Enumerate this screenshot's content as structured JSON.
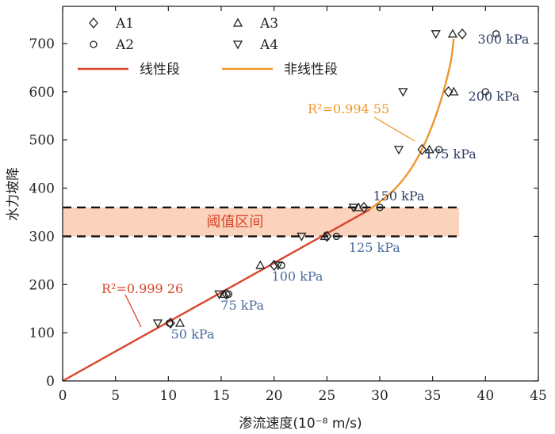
{
  "chart_data": {
    "type": "scatter",
    "xlabel": "渗流速度(10⁻⁸ m/s)",
    "ylabel": "水力坡降",
    "xlim": [
      0,
      45
    ],
    "ylim": [
      0,
      750
    ],
    "xticks": [
      "0",
      "5",
      "10",
      "15",
      "20",
      "25",
      "30",
      "35",
      "40",
      "45"
    ],
    "yticks": [
      "0",
      "100",
      "200",
      "300",
      "400",
      "500",
      "600",
      "700"
    ],
    "legend": {
      "placement": "top-left",
      "items": [
        {
          "label": "A1",
          "marker": "diamond"
        },
        {
          "label": "A2",
          "marker": "circle"
        },
        {
          "label": "A3",
          "marker": "triangle-up"
        },
        {
          "label": "A4",
          "marker": "triangle-down"
        },
        {
          "label": "线性段",
          "line_color": "#d9452b"
        },
        {
          "label": "非线性段",
          "line_color": "#f0962c"
        }
      ]
    },
    "series": [
      {
        "name": "A1",
        "marker": "diamond",
        "points": [
          [
            10.2,
            120
          ],
          [
            15.5,
            180
          ],
          [
            20.0,
            240
          ],
          [
            25.0,
            300
          ],
          [
            28.5,
            360
          ],
          [
            34.0,
            480
          ],
          [
            36.5,
            600
          ],
          [
            37.8,
            720
          ]
        ]
      },
      {
        "name": "A2",
        "marker": "circle",
        "points": [
          [
            10.1,
            120
          ],
          [
            15.7,
            180
          ],
          [
            20.7,
            240
          ],
          [
            25.9,
            300
          ],
          [
            30.0,
            360
          ],
          [
            35.6,
            480
          ],
          [
            40.0,
            600
          ],
          [
            41.0,
            720
          ]
        ]
      },
      {
        "name": "A3",
        "marker": "triangle-up",
        "points": [
          [
            11.1,
            120
          ],
          [
            15.3,
            180
          ],
          [
            18.7,
            240
          ],
          [
            24.8,
            300
          ],
          [
            28.0,
            360
          ],
          [
            34.7,
            480
          ],
          [
            37.0,
            600
          ],
          [
            36.9,
            720
          ]
        ]
      },
      {
        "name": "A4",
        "marker": "triangle-down",
        "points": [
          [
            9.0,
            120
          ],
          [
            14.8,
            180
          ],
          [
            20.4,
            240
          ],
          [
            22.6,
            300
          ],
          [
            27.5,
            360
          ],
          [
            31.8,
            480
          ],
          [
            32.2,
            600
          ],
          [
            35.3,
            720
          ]
        ]
      }
    ],
    "fits": [
      {
        "name": "线性段",
        "color": "#d9452b",
        "points": [
          [
            0,
            0
          ],
          [
            29,
            355
          ]
        ],
        "r2_label": "R²=0.999 26"
      },
      {
        "name": "非线性段",
        "color": "#f0962c",
        "points": [
          [
            29,
            355
          ],
          [
            31.5,
            400
          ],
          [
            33.5,
            460
          ],
          [
            35.3,
            550
          ],
          [
            36.6,
            650
          ],
          [
            37.0,
            710
          ]
        ],
        "r2_label": "R²=0.994 55"
      }
    ],
    "threshold_band": {
      "label": "阈值区间",
      "y_low": 300,
      "y_high": 360,
      "color": "#fbd3bc"
    },
    "pressure_labels": [
      {
        "text": "50 kPa",
        "x": 12.3,
        "y": 88,
        "color": "#4a6d9c"
      },
      {
        "text": "75 kPa",
        "x": 17.0,
        "y": 148,
        "color": "#4a6d9c"
      },
      {
        "text": "100 kPa",
        "x": 22.2,
        "y": 208,
        "color": "#4a6d9c"
      },
      {
        "text": "125 kPa",
        "x": 29.5,
        "y": 268,
        "color": "#4a6d9c"
      },
      {
        "text": "150 kPa",
        "x": 31.8,
        "y": 375,
        "color": "#2f3c63"
      },
      {
        "text": "175 kPa",
        "x": 36.7,
        "y": 462,
        "color": "#2f3c63"
      },
      {
        "text": "200 kPa",
        "x": 40.8,
        "y": 582,
        "color": "#2f3c63"
      },
      {
        "text": "300 kPa",
        "x": 41.7,
        "y": 700,
        "color": "#2f3c63"
      }
    ]
  }
}
